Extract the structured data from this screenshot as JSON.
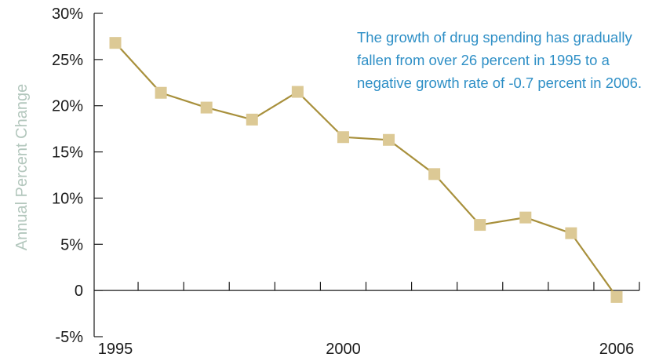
{
  "colors": {
    "line": "#a8903c",
    "marker": "#dcc995",
    "axis": "#1a1a1a",
    "ylabel": "#b3c7bd",
    "annotation": "#2e8fc6"
  },
  "annotation": {
    "lines": [
      "The growth of drug spending has gradually",
      "fallen from over 26 percent in 1995 to a",
      "negative growth rate of -0.7 percent in 2006."
    ]
  },
  "chart_data": {
    "type": "line",
    "title": "",
    "xlabel": "",
    "ylabel": "Annual Percent Change",
    "x": [
      1995,
      1996,
      1997,
      1998,
      1999,
      2000,
      2001,
      2002,
      2003,
      2004,
      2005,
      2006
    ],
    "series": [
      {
        "values": [
          26.8,
          21.4,
          19.8,
          18.5,
          21.5,
          16.6,
          16.3,
          12.6,
          7.1,
          7.9,
          6.2,
          -0.7
        ]
      }
    ],
    "ylim": [
      -5,
      30
    ],
    "xlim": [
      1995,
      2006
    ],
    "y_ticks": [
      30,
      25,
      20,
      15,
      10,
      5,
      0,
      -5
    ],
    "y_tick_labels": [
      "30%",
      "25%",
      "20%",
      "15%",
      "10%",
      "5%",
      "0",
      "-5%"
    ],
    "x_tick_labels": [
      {
        "value": 1995,
        "label": "1995"
      },
      {
        "value": 2000,
        "label": "2000"
      },
      {
        "value": 2006,
        "label": "2006"
      }
    ],
    "grid": false,
    "legend": "none",
    "marker": "square"
  }
}
